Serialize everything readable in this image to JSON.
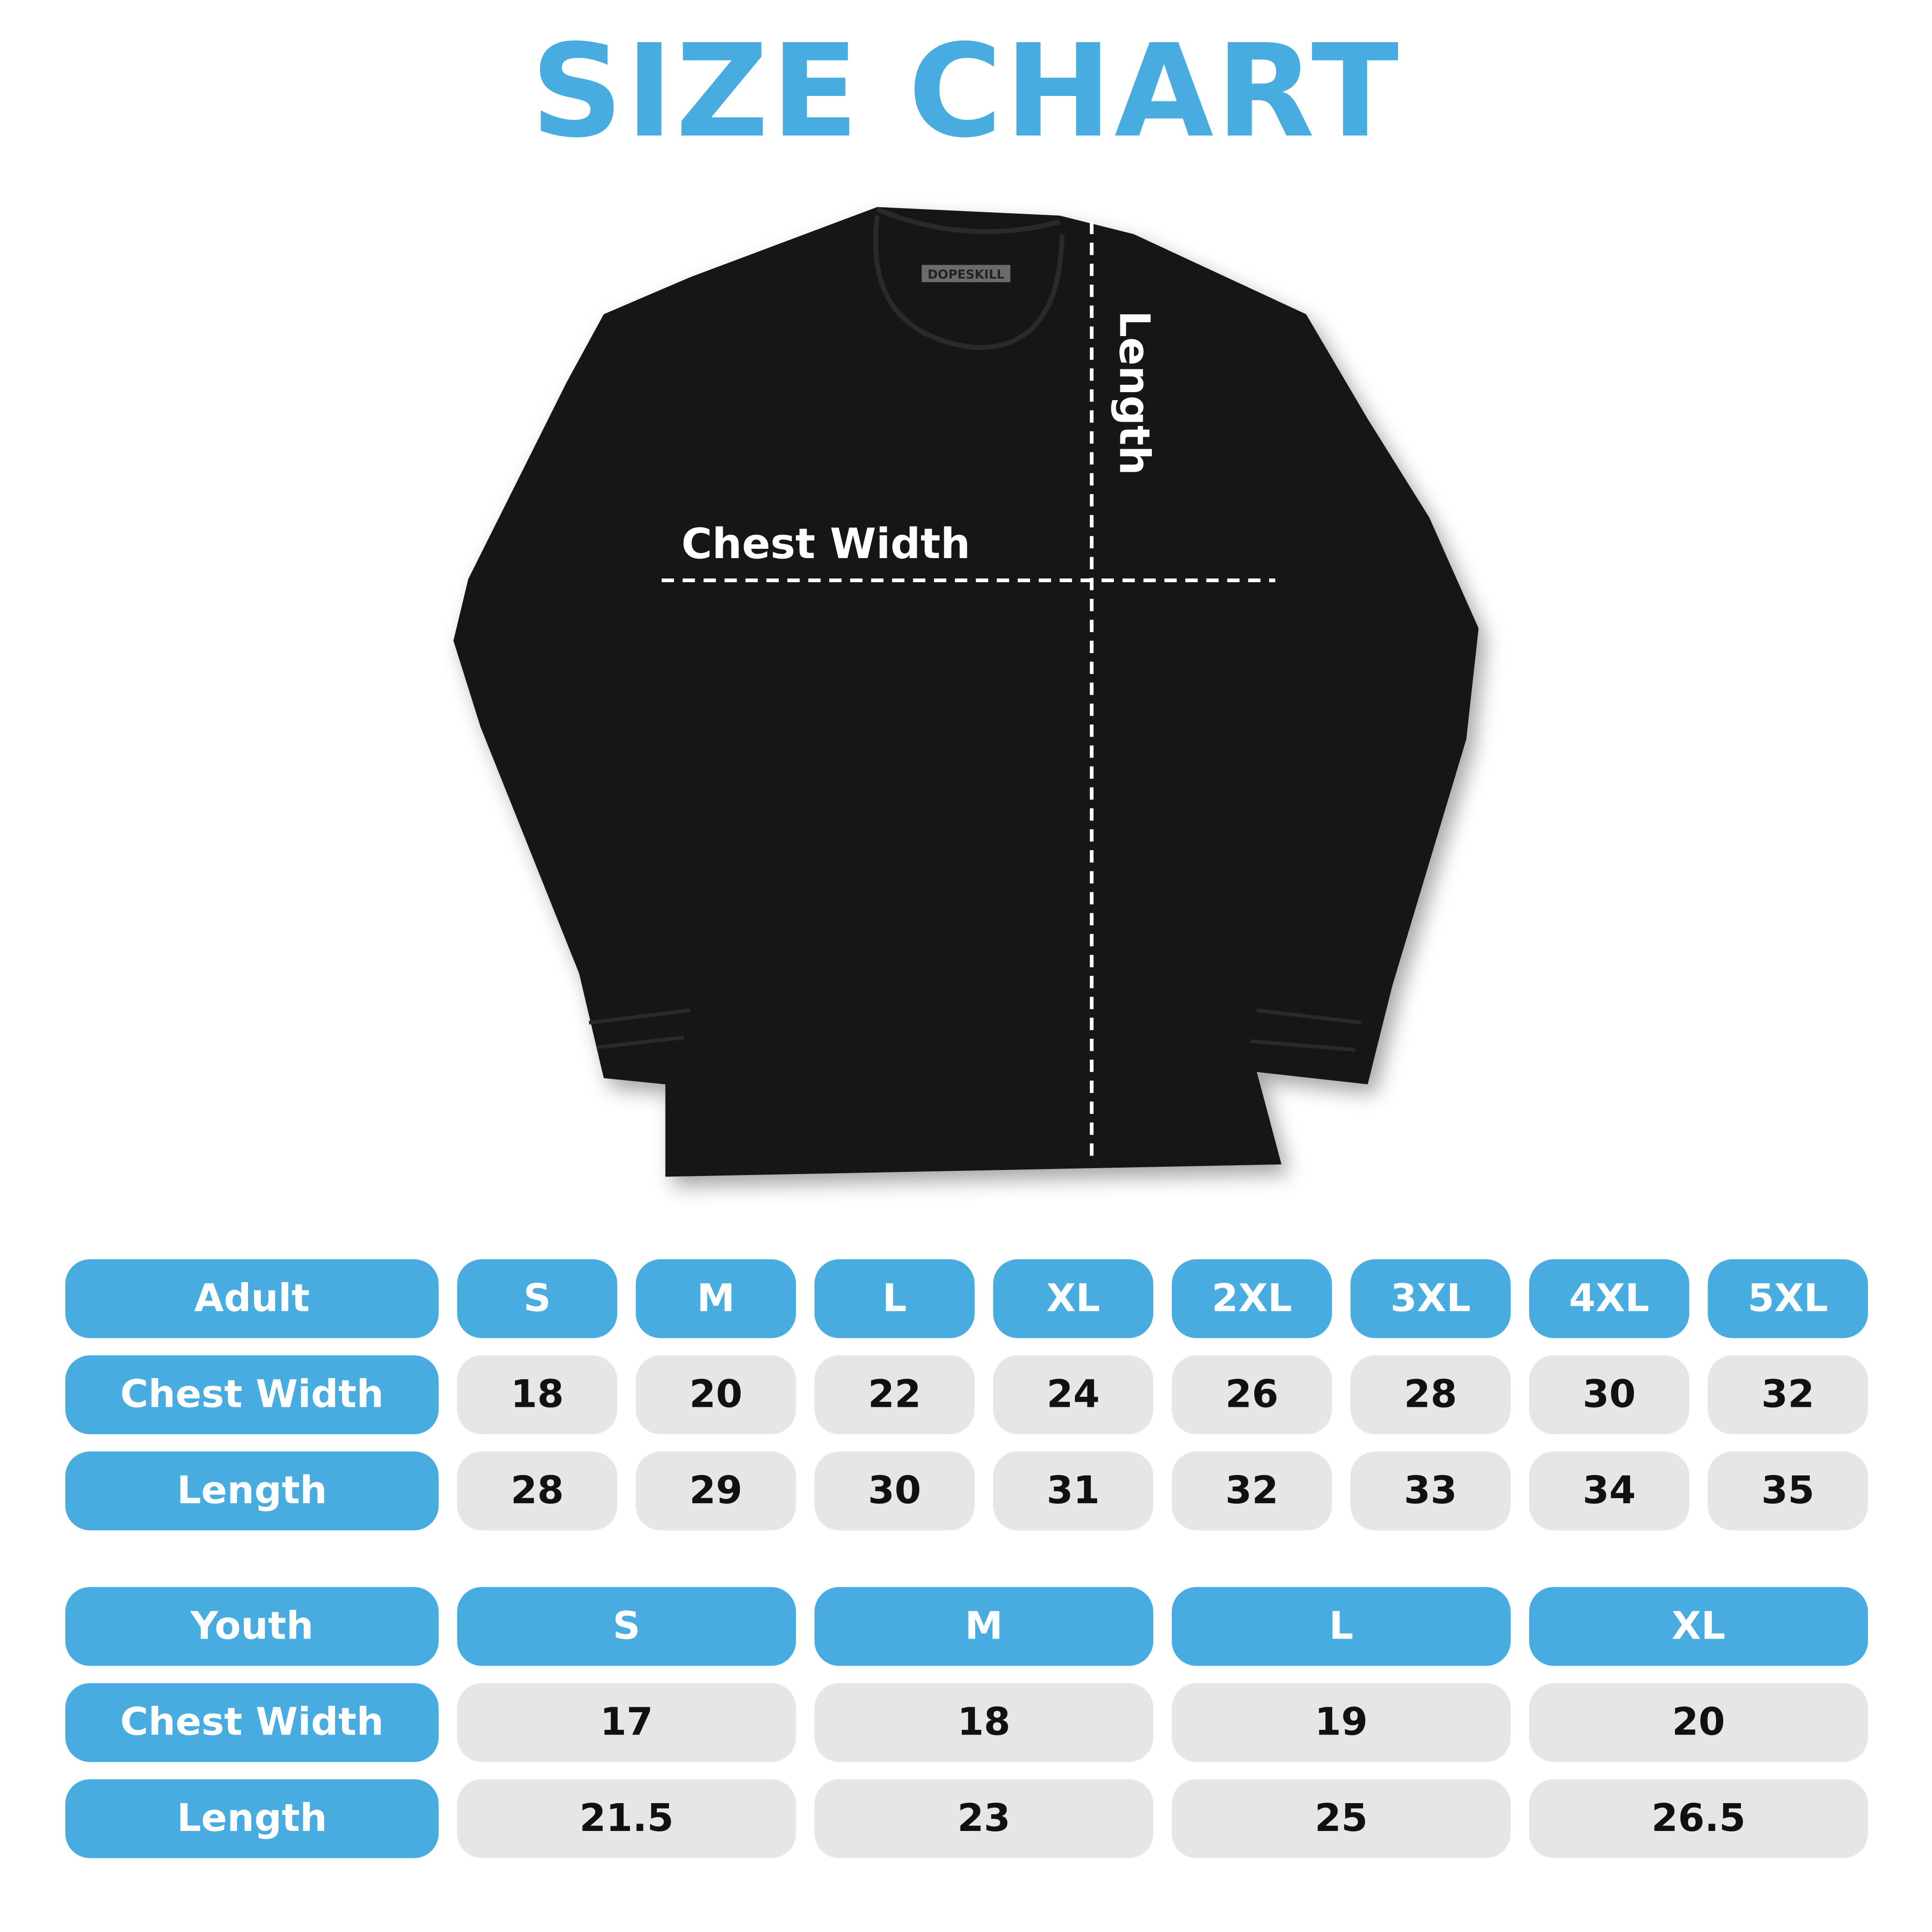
{
  "title": "SIZE CHART",
  "colors": {
    "accent": "#48ACE1",
    "value_cell": "#E6E6E8",
    "shirt": "#151515"
  },
  "shirt": {
    "tag_text": "DOPESKILL",
    "chest_label": "Chest Width",
    "length_label": "Length"
  },
  "adult": {
    "header": "Adult",
    "sizes": [
      "S",
      "M",
      "L",
      "XL",
      "2XL",
      "3XL",
      "4XL",
      "5XL"
    ],
    "rows": [
      {
        "label": "Chest Width",
        "values": [
          "18",
          "20",
          "22",
          "24",
          "26",
          "28",
          "30",
          "32"
        ]
      },
      {
        "label": "Length",
        "values": [
          "28",
          "29",
          "30",
          "31",
          "32",
          "33",
          "34",
          "35"
        ]
      }
    ]
  },
  "youth": {
    "header": "Youth",
    "sizes": [
      "S",
      "M",
      "L",
      "XL"
    ],
    "rows": [
      {
        "label": "Chest Width",
        "values": [
          "17",
          "18",
          "19",
          "20"
        ]
      },
      {
        "label": "Length",
        "values": [
          "21.5",
          "23",
          "25",
          "26.5"
        ]
      }
    ]
  }
}
